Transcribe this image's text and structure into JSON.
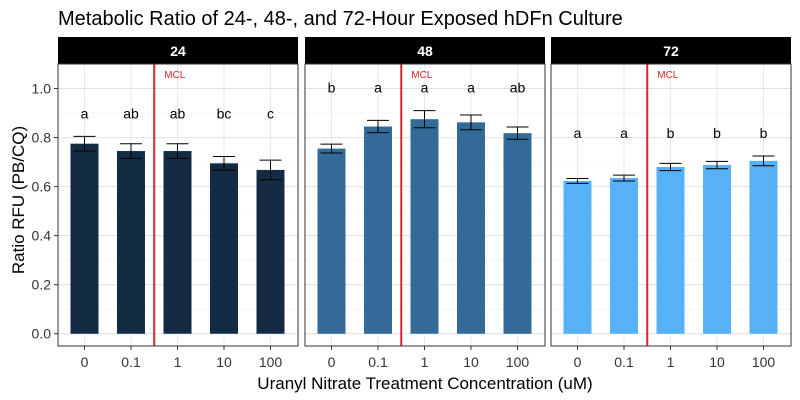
{
  "chart_data": {
    "type": "bar",
    "title": "Metabolic Ratio of 24-, 48-, and 72-Hour Exposed hDFn Culture",
    "xlabel": "Uranyl Nitrate Treatment Concentration (uM)",
    "ylabel": "Ratio RFU (PB/CQ)",
    "ylim": [
      -0.05,
      1.1
    ],
    "yticks": [
      0.0,
      0.2,
      0.4,
      0.6,
      0.8,
      1.0
    ],
    "ytick_labels": [
      "0.0",
      "0.2",
      "0.4",
      "0.6",
      "0.8",
      "1.0"
    ],
    "categories": [
      "0",
      "0.1",
      "1",
      "10",
      "100"
    ],
    "grid": true,
    "reference_line": {
      "label": "MCL",
      "between": [
        "0.1",
        "1"
      ],
      "color": "#d62728"
    },
    "panels": [
      {
        "label": "24",
        "color": "#132b43",
        "values": [
          0.775,
          0.745,
          0.745,
          0.695,
          0.668
        ],
        "errors": [
          0.03,
          0.03,
          0.03,
          0.028,
          0.04
        ],
        "significance": [
          "a",
          "ab",
          "ab",
          "bc",
          "c"
        ]
      },
      {
        "label": "48",
        "color": "#336a98",
        "values": [
          0.755,
          0.845,
          0.875,
          0.862,
          0.818
        ],
        "errors": [
          0.018,
          0.025,
          0.035,
          0.03,
          0.025
        ],
        "significance": [
          "b",
          "a",
          "a",
          "a",
          "ab"
        ]
      },
      {
        "label": "72",
        "color": "#56b1f7",
        "values": [
          0.623,
          0.635,
          0.68,
          0.688,
          0.705
        ],
        "errors": [
          0.01,
          0.012,
          0.015,
          0.015,
          0.02
        ],
        "significance": [
          "a",
          "a",
          "b",
          "b",
          "b"
        ]
      }
    ]
  }
}
